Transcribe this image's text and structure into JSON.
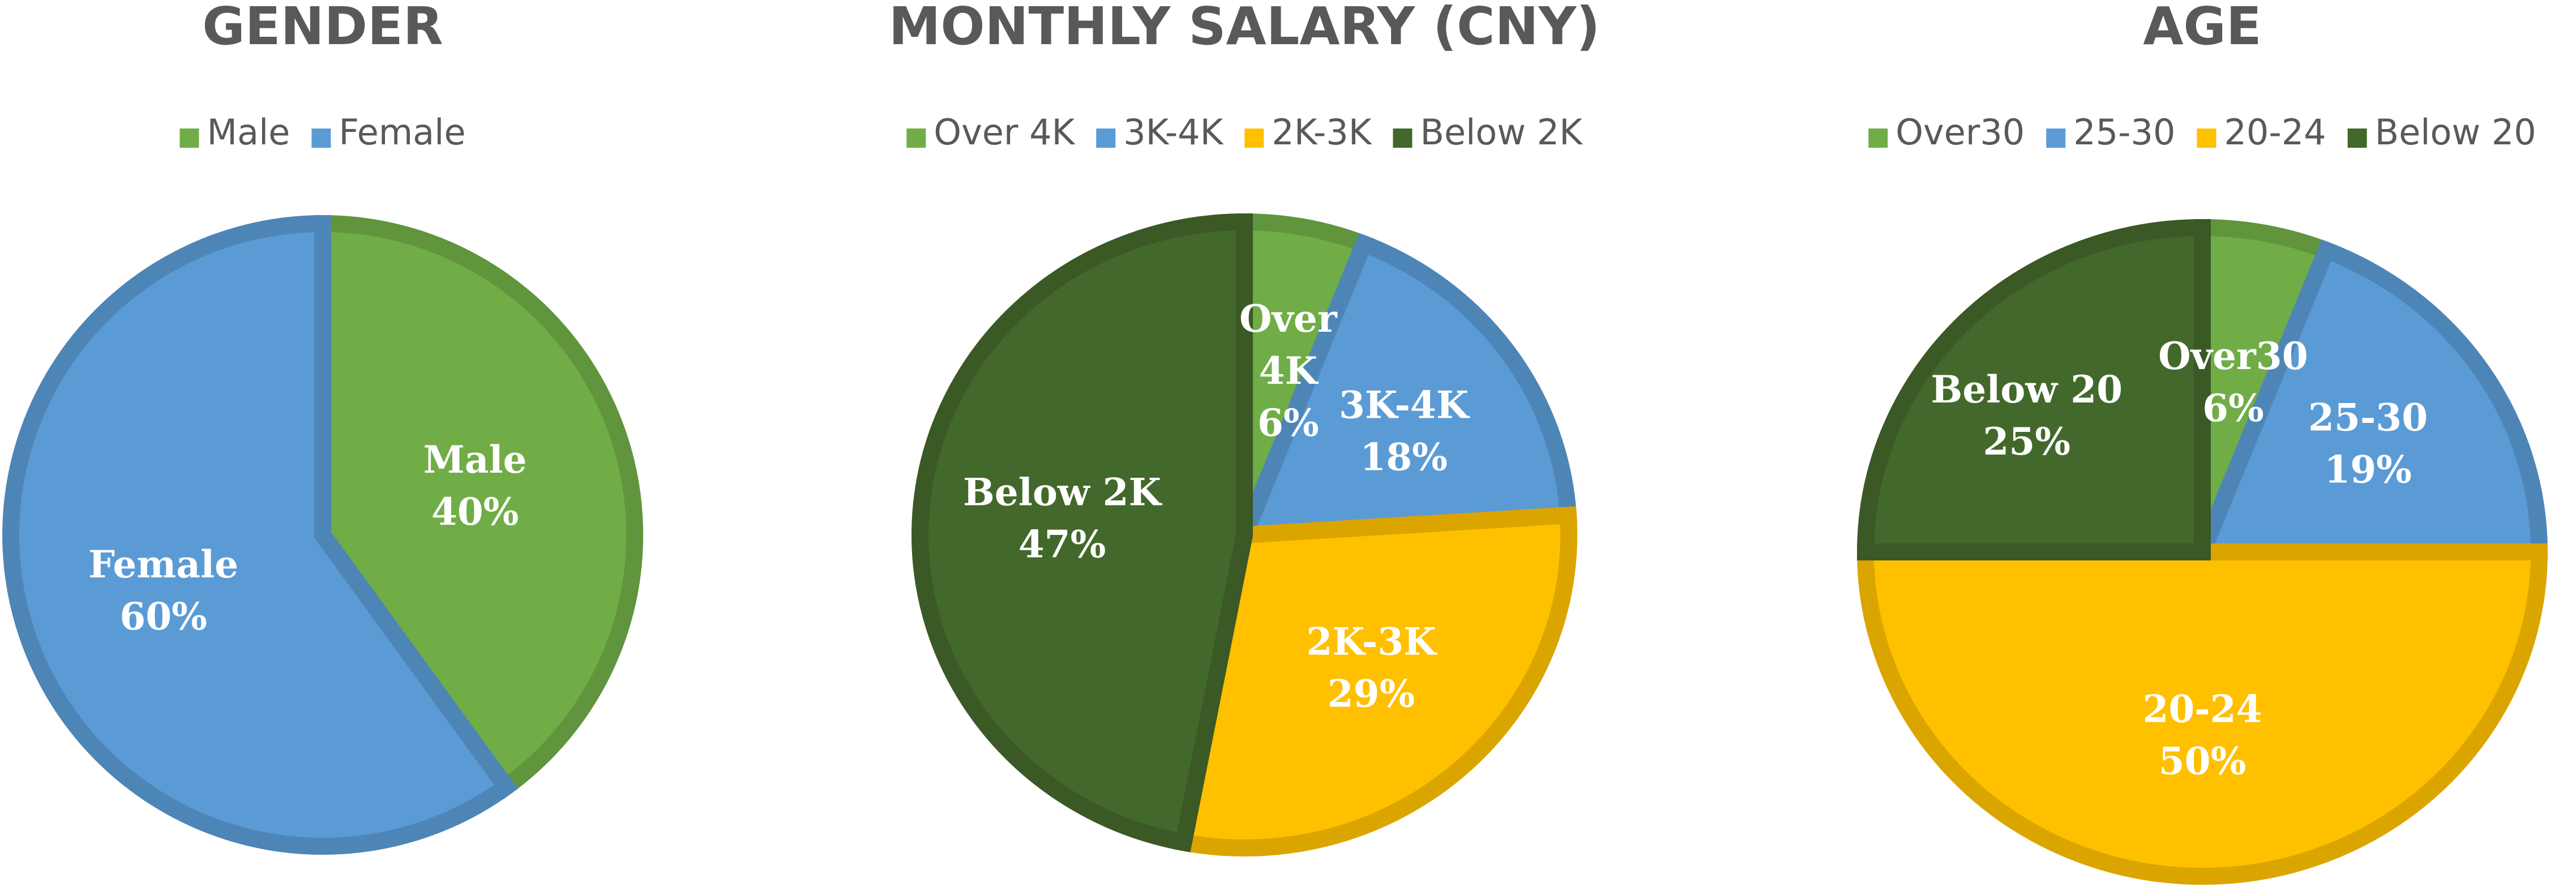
{
  "chart_data": [
    {
      "type": "pie",
      "title": "GENDER",
      "legend_position": "top",
      "slices": [
        {
          "label": "Male",
          "value": 40,
          "percent_label": "40%",
          "color": "#70AD47",
          "slice_labels": [
            "Male",
            "40%"
          ]
        },
        {
          "label": "Female",
          "value": 60,
          "percent_label": "60%",
          "color": "#5B9BD5",
          "slice_labels": [
            "Female",
            "60%"
          ]
        }
      ]
    },
    {
      "type": "pie",
      "title": "MONTHLY SALARY (CNY)",
      "legend_position": "top",
      "slices": [
        {
          "label": "Over 4K",
          "value": 6,
          "percent_label": "6%",
          "color": "#70AD47",
          "slice_labels": [
            "Over",
            "4K",
            "6%"
          ]
        },
        {
          "label": "3K-4K",
          "value": 18,
          "percent_label": "18%",
          "color": "#5B9BD5",
          "slice_labels": [
            "3K-4K",
            "18%"
          ]
        },
        {
          "label": "2K-3K",
          "value": 29,
          "percent_label": "29%",
          "color": "#FFC000",
          "slice_labels": [
            "2K-3K",
            "29%"
          ]
        },
        {
          "label": "Below 2K",
          "value": 47,
          "percent_label": "47%",
          "color": "#43682B",
          "slice_labels": [
            "Below 2K",
            "47%"
          ]
        }
      ]
    },
    {
      "type": "pie",
      "title": "AGE",
      "legend_position": "top",
      "slices": [
        {
          "label": "Over30",
          "value": 6,
          "percent_label": "6%",
          "color": "#70AD47",
          "slice_labels": [
            "Over30",
            "6%"
          ]
        },
        {
          "label": "25-30",
          "value": 19,
          "percent_label": "19%",
          "color": "#5B9BD5",
          "slice_labels": [
            "25-30",
            "19%"
          ]
        },
        {
          "label": "20-24",
          "value": 50,
          "percent_label": "50%",
          "color": "#FFC000",
          "slice_labels": [
            "20-24",
            "50%"
          ]
        },
        {
          "label": "Below 20",
          "value": 25,
          "percent_label": "25%",
          "color": "#43682B",
          "slice_labels": [
            "Below 20",
            "25%"
          ]
        }
      ]
    }
  ]
}
